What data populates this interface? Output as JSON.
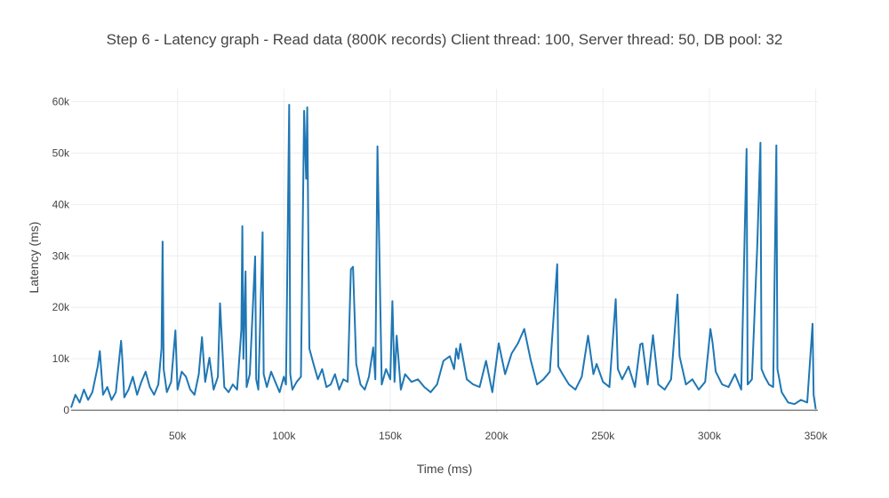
{
  "chart_data": {
    "type": "line",
    "title": "Step 6 - Latency graph - Read data (800K records) Client thread: 100, Server thread: 50, DB pool: 32",
    "xlabel": "Time (ms)",
    "ylabel": "Latency (ms)",
    "xlim": [
      0,
      351000
    ],
    "ylim": [
      -500,
      62500
    ],
    "x_ticks": [
      {
        "value": 50000,
        "label": "50k"
      },
      {
        "value": 100000,
        "label": "100k"
      },
      {
        "value": 150000,
        "label": "150k"
      },
      {
        "value": 200000,
        "label": "200k"
      },
      {
        "value": 250000,
        "label": "250k"
      },
      {
        "value": 300000,
        "label": "300k"
      },
      {
        "value": 350000,
        "label": "350k"
      }
    ],
    "y_ticks": [
      {
        "value": 0,
        "label": "0"
      },
      {
        "value": 10000,
        "label": "10k"
      },
      {
        "value": 20000,
        "label": "20k"
      },
      {
        "value": 30000,
        "label": "30k"
      },
      {
        "value": 40000,
        "label": "40k"
      },
      {
        "value": 50000,
        "label": "50k"
      },
      {
        "value": 60000,
        "label": "60k"
      }
    ],
    "grid": true,
    "series": [
      {
        "color": "#1f77b4",
        "x": [
          0,
          2000,
          4000,
          6000,
          8000,
          10000,
          12500,
          13500,
          15000,
          17000,
          19000,
          21000,
          23500,
          24000,
          25000,
          27000,
          29000,
          31000,
          33000,
          35000,
          37000,
          39000,
          41000,
          42500,
          43000,
          43500,
          45000,
          47000,
          49000,
          50000,
          52000,
          54000,
          56000,
          58000,
          60000,
          61500,
          63000,
          65000,
          67000,
          69000,
          70000,
          72000,
          74000,
          76000,
          78000,
          80000,
          80500,
          81000,
          82000,
          82500,
          84000,
          86500,
          87000,
          88000,
          90000,
          90500,
          92000,
          94000,
          96000,
          98000,
          100000,
          101000,
          102500,
          103000,
          104000,
          106000,
          108000,
          109500,
          110000,
          110500,
          111000,
          111500,
          112000,
          114000,
          116000,
          118000,
          120000,
          122000,
          124000,
          126000,
          128000,
          130000,
          131500,
          132500,
          134000,
          136000,
          138000,
          140000,
          142000,
          143000,
          144000,
          146000,
          148000,
          150000,
          151000,
          152000,
          153000,
          155000,
          157000,
          160000,
          163000,
          166000,
          169000,
          172000,
          175000,
          178000,
          180000,
          181000,
          182000,
          183000,
          186000,
          189000,
          192000,
          195000,
          198000,
          201000,
          204000,
          207000,
          210000,
          213000,
          216000,
          219000,
          222000,
          225000,
          228500,
          229000,
          231000,
          234000,
          237000,
          240000,
          243000,
          245500,
          247000,
          250000,
          253000,
          256000,
          257000,
          259000,
          262000,
          265000,
          267500,
          268500,
          271000,
          273500,
          276000,
          279000,
          282000,
          285000,
          286000,
          289000,
          292000,
          295000,
          298000,
          300500,
          301500,
          303000,
          306000,
          309000,
          312000,
          315000,
          317500,
          318000,
          320000,
          322500,
          324000,
          324500,
          326000,
          328000,
          330000,
          331500,
          332000,
          334000,
          337000,
          340000,
          343000,
          346000,
          348500,
          349000,
          350000
        ],
        "y": [
          500,
          3000,
          1500,
          4000,
          2000,
          3500,
          8500,
          11500,
          3000,
          4500,
          2000,
          3500,
          13500,
          10500,
          2500,
          4000,
          6500,
          3000,
          5500,
          7500,
          4500,
          3000,
          5000,
          12000,
          32800,
          8000,
          3500,
          5500,
          15500,
          4000,
          7500,
          6500,
          4000,
          3000,
          7000,
          14200,
          5500,
          10200,
          4000,
          6500,
          20800,
          4500,
          3500,
          5000,
          4000,
          15700,
          35800,
          10000,
          27000,
          4500,
          7000,
          29900,
          6000,
          4000,
          34600,
          7000,
          4500,
          7500,
          5500,
          3500,
          6500,
          5000,
          59400,
          7000,
          4000,
          5500,
          6500,
          58200,
          51500,
          45000,
          58900,
          34300,
          12000,
          8900,
          6000,
          8000,
          4500,
          5000,
          7000,
          4000,
          6000,
          5500,
          27400,
          27900,
          9000,
          5000,
          4000,
          6500,
          12200,
          6000,
          51300,
          5000,
          8000,
          6000,
          21200,
          5500,
          14500,
          4000,
          7000,
          5500,
          6000,
          4500,
          3500,
          5000,
          9600,
          10500,
          8000,
          12000,
          10000,
          12900,
          6000,
          5000,
          4500,
          9600,
          3500,
          13000,
          7000,
          11000,
          13000,
          15800,
          9800,
          5000,
          6000,
          7500,
          28400,
          8500,
          7000,
          5000,
          4000,
          6500,
          14500,
          7000,
          9000,
          5500,
          4500,
          21600,
          8000,
          6000,
          8500,
          4500,
          12800,
          13000,
          5000,
          14600,
          5000,
          4000,
          6000,
          22500,
          10500,
          5000,
          6000,
          4000,
          5500,
          15800,
          13200,
          7500,
          5000,
          4500,
          7000,
          4000,
          50800,
          5000,
          6000,
          31900,
          52000,
          8000,
          6500,
          5000,
          4500,
          51500,
          8000,
          3500,
          1500,
          1200,
          2000,
          1500,
          16800,
          3000,
          200
        ]
      }
    ]
  }
}
